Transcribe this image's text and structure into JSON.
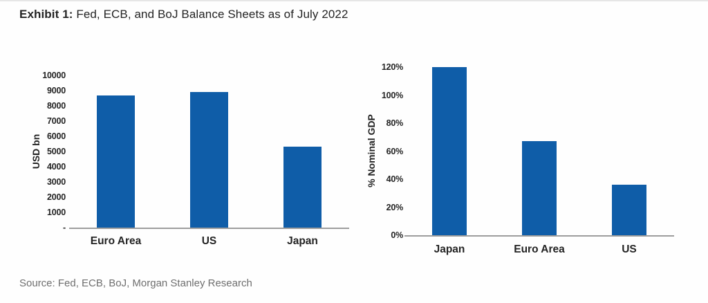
{
  "title": {
    "prefix": "Exhibit 1:",
    "rest": " Fed, ECB, and BoJ Balance Sheets as of July 2022"
  },
  "source": "Source: Fed, ECB, BoJ, Morgan Stanley Research",
  "colors": {
    "bar": "#0f5da8",
    "axis_line": "#9c9c9c",
    "text": "#232323",
    "source_text": "#6e6e6e"
  },
  "chart_data": [
    {
      "type": "bar",
      "title": "",
      "ylabel": "USD bn",
      "categories": [
        "Euro Area",
        "US",
        "Japan"
      ],
      "values": [
        8700,
        8900,
        5300
      ],
      "ylim": [
        0,
        10000
      ],
      "ytick_values": [
        0,
        1000,
        2000,
        3000,
        4000,
        5000,
        6000,
        7000,
        8000,
        9000,
        10000
      ],
      "ytick_labels": [
        "-",
        "1000",
        "2000",
        "3000",
        "4000",
        "5000",
        "6000",
        "7000",
        "8000",
        "9000",
        "10000"
      ],
      "grid": false,
      "legend": "none"
    },
    {
      "type": "bar",
      "title": "",
      "ylabel": "% Nominal GDP",
      "categories": [
        "Japan",
        "Euro Area",
        "US"
      ],
      "values": [
        120,
        67,
        36
      ],
      "ylim": [
        0,
        120
      ],
      "ytick_values": [
        0,
        20,
        40,
        60,
        80,
        100,
        120
      ],
      "ytick_labels": [
        "0%",
        "20%",
        "40%",
        "60%",
        "80%",
        "100%",
        "120%"
      ],
      "grid": false,
      "legend": "none"
    }
  ]
}
